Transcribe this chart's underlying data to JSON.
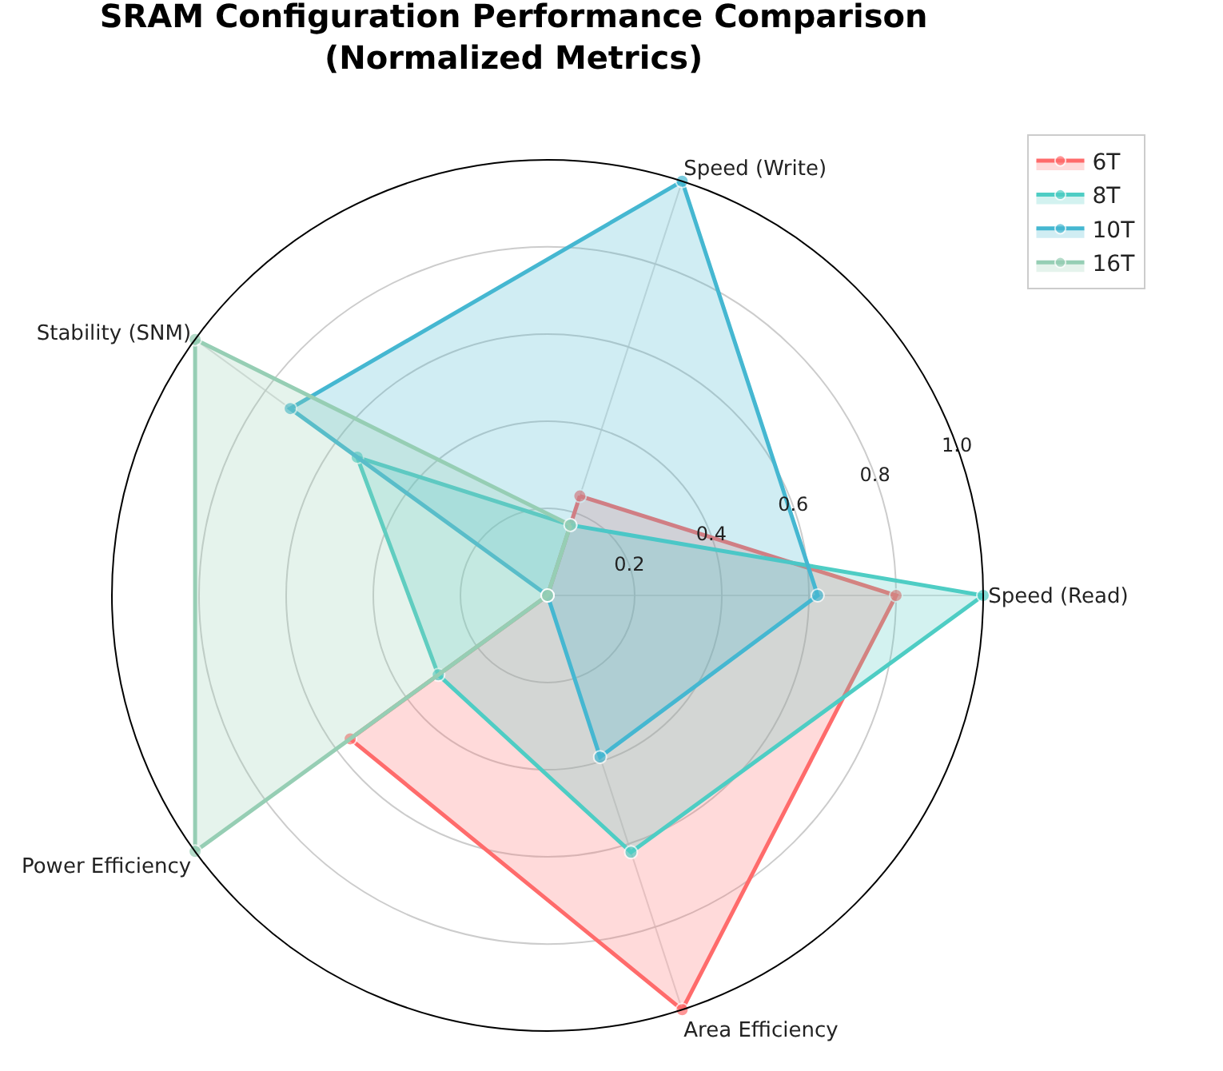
{
  "chart_data": {
    "type": "radar",
    "title": "SRAM Configuration Performance Comparison\n(Normalized Metrics)",
    "categories": [
      "Speed (Write)",
      "Speed (Read)",
      "Area Efficiency",
      "Power Efficiency",
      "Stability (SNM)"
    ],
    "series": [
      {
        "name": "6T",
        "color": "#ff6b6b",
        "values": [
          0.24,
          0.8,
          1.0,
          0.56,
          0
        ]
      },
      {
        "name": "8T",
        "color": "#4ecdc4",
        "values": [
          0.17,
          1.0,
          0.62,
          0.31,
          0.54
        ]
      },
      {
        "name": "10T",
        "color": "#45b7d1",
        "values": [
          1.0,
          0.62,
          0.39,
          0,
          0.73
        ]
      },
      {
        "name": "16T",
        "color": "#96ceb4",
        "values": [
          0.17,
          0,
          0,
          1.0,
          1.0
        ]
      }
    ],
    "ylim": [
      0,
      1.0
    ],
    "yticks": [
      0.2,
      0.4,
      0.6,
      0.8,
      {
        "value": 1,
        "label": "1.0"
      }
    ],
    "grid": true,
    "legend": "top right",
    "marker": "circle",
    "line_style": "solid"
  }
}
